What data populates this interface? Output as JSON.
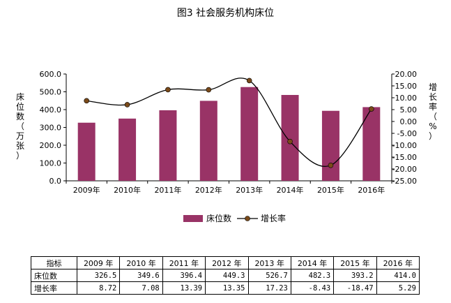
{
  "chart_data": {
    "type": "bar+line",
    "title": "图3   社会服务机构床位",
    "categories": [
      "2009年",
      "2010年",
      "2011年",
      "2012年",
      "2013年",
      "2014年",
      "2015年",
      "2016年"
    ],
    "series": [
      {
        "name": "床位数",
        "type": "bar",
        "axis": "left",
        "color": "#993366",
        "values": [
          326.5,
          349.6,
          396.4,
          449.3,
          526.7,
          482.3,
          393.2,
          414.0
        ]
      },
      {
        "name": "增长率",
        "type": "line",
        "axis": "right",
        "color": "#000000",
        "marker_color": "#7a4a1a",
        "values": [
          8.72,
          7.08,
          13.39,
          13.35,
          17.23,
          -8.43,
          -18.47,
          5.29
        ]
      }
    ],
    "ylabel_left": "床位数（万张）",
    "ylabel_right": "增长率（%）",
    "ylim_left": [
      0,
      600
    ],
    "ylim_right": [
      -25,
      20
    ],
    "yticks_left": [
      "0.0",
      "100.0",
      "200.0",
      "300.0",
      "400.0",
      "500.0",
      "600.0"
    ],
    "yticks_right": [
      "-25.00",
      "-20.00",
      "-15.00",
      "-10.00",
      "-5.00",
      "0.00",
      "5.00",
      "10.00",
      "15.00",
      "20.00"
    ],
    "grid": false,
    "legend_position": "bottom"
  },
  "table": {
    "header": [
      "指标",
      "2009 年",
      "2010 年",
      "2011 年",
      "2012 年",
      "2013 年",
      "2014 年",
      "2015 年",
      "2016 年"
    ],
    "rows": [
      {
        "label": "床位数",
        "values": [
          "326.5",
          "349.6",
          "396.4",
          "449.3",
          "526.7",
          "482.3",
          "393.2",
          "414.0"
        ]
      },
      {
        "label": "增长率",
        "values": [
          "8.72",
          "7.08",
          "13.39",
          "13.35",
          "17.23",
          "-8.43",
          "-18.47",
          "5.29"
        ]
      }
    ]
  }
}
